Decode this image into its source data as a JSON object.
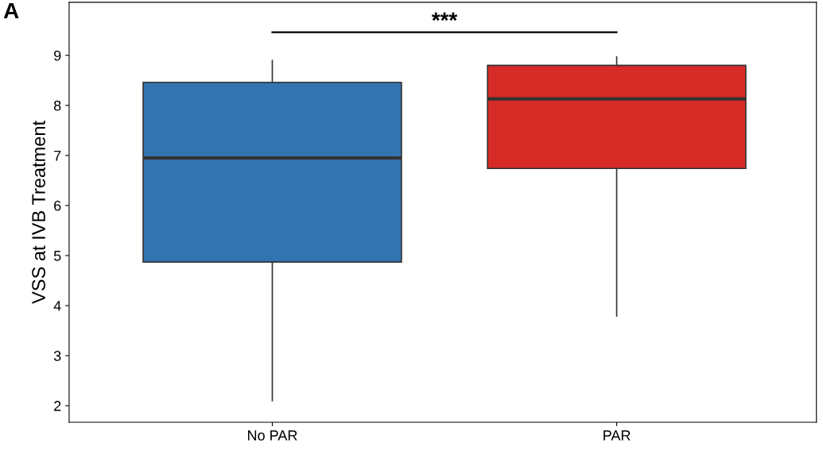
{
  "chart_data": {
    "type": "box",
    "ylabel": "VSS at IVB Treatment",
    "categories": [
      "No PAR",
      "PAR"
    ],
    "series": [
      {
        "colors": [
          "#3274b0",
          "#d62b27"
        ],
        "boxes": [
          {
            "low": 2.1,
            "q1": 4.87,
            "median": 6.95,
            "q3": 8.46,
            "high": 8.9
          },
          {
            "low": 3.79,
            "q1": 6.74,
            "median": 8.13,
            "q3": 8.8,
            "high": 8.97
          }
        ]
      }
    ],
    "ylim": [
      1.67,
      10.06
    ],
    "yticks": [
      2,
      3,
      4,
      5,
      6,
      7,
      8,
      9
    ],
    "grid": false,
    "annotations": [
      "A",
      "***"
    ]
  }
}
